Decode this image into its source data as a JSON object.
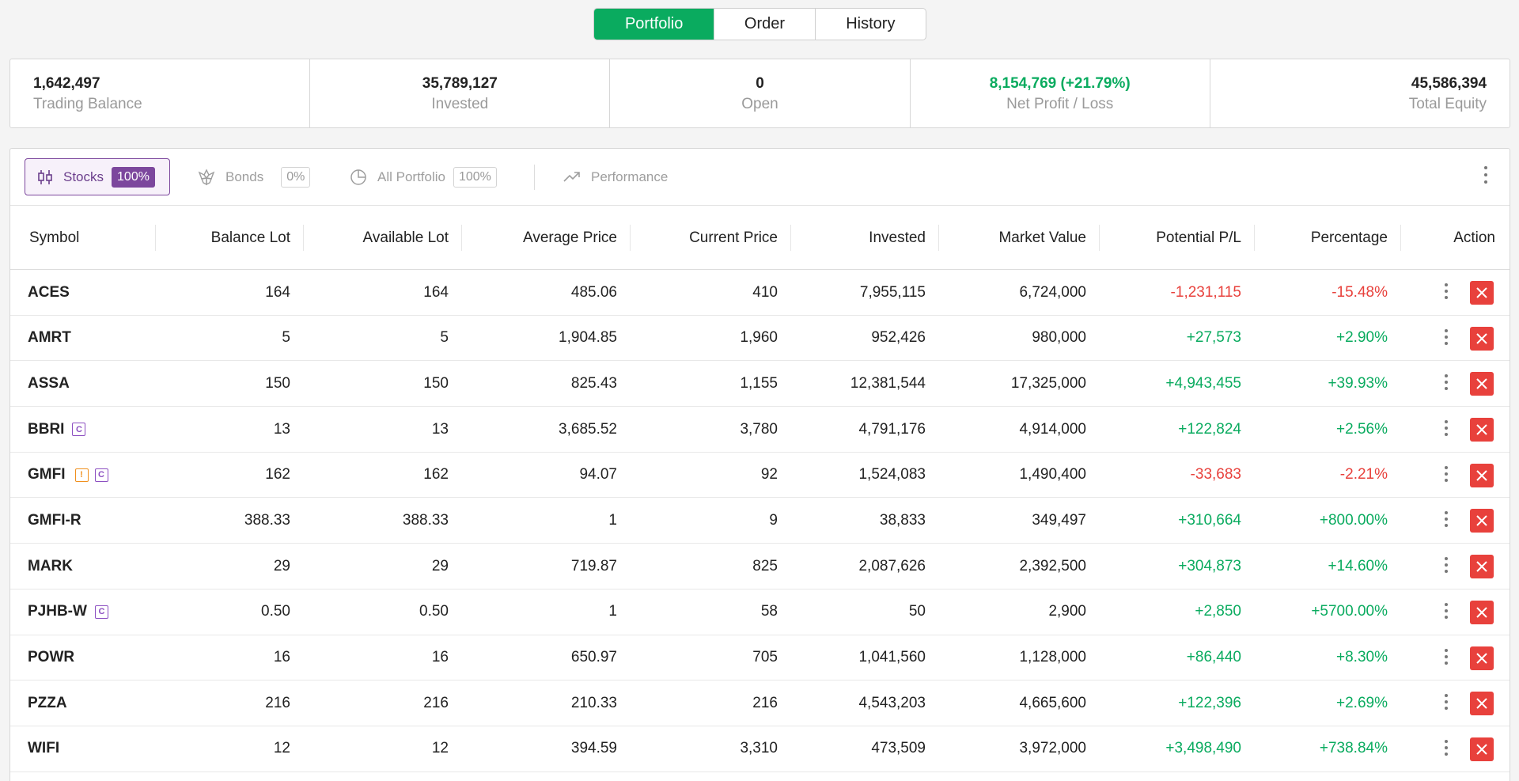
{
  "tabs": [
    {
      "label": "Portfolio",
      "active": true
    },
    {
      "label": "Order",
      "active": false
    },
    {
      "label": "History",
      "active": false
    }
  ],
  "summary": [
    {
      "value": "1,642,497",
      "label": "Trading Balance",
      "align": "left"
    },
    {
      "value": "35,789,127",
      "label": "Invested",
      "align": "center"
    },
    {
      "value": "0",
      "label": "Open",
      "align": "center"
    },
    {
      "value": "8,154,769 (+21.79%)",
      "label": "Net Profit / Loss",
      "align": "center",
      "positive": true
    },
    {
      "value": "45,586,394",
      "label": "Total Equity",
      "align": "right"
    }
  ],
  "toolbar": {
    "stocks": {
      "label": "Stocks",
      "pct": "100%"
    },
    "bonds": {
      "label": "Bonds",
      "pct": "0%"
    },
    "all": {
      "label": "All Portfolio",
      "pct": "100%"
    },
    "performance": {
      "label": "Performance"
    }
  },
  "columns": [
    "Symbol",
    "Balance Lot",
    "Available Lot",
    "Average Price",
    "Current Price",
    "Invested",
    "Market Value",
    "Potential P/L",
    "Percentage",
    "Action"
  ],
  "rows": [
    {
      "symbol": "ACES",
      "badges": [],
      "balance_lot": "164",
      "available_lot": "164",
      "avg_price": "485.06",
      "current_price": "410",
      "invested": "7,955,115",
      "market_value": "6,724,000",
      "pl": "-1,231,115",
      "pct": "-15.48%",
      "positive": false
    },
    {
      "symbol": "AMRT",
      "badges": [],
      "balance_lot": "5",
      "available_lot": "5",
      "avg_price": "1,904.85",
      "current_price": "1,960",
      "invested": "952,426",
      "market_value": "980,000",
      "pl": "+27,573",
      "pct": "+2.90%",
      "positive": true
    },
    {
      "symbol": "ASSA",
      "badges": [],
      "balance_lot": "150",
      "available_lot": "150",
      "avg_price": "825.43",
      "current_price": "1,155",
      "invested": "12,381,544",
      "market_value": "17,325,000",
      "pl": "+4,943,455",
      "pct": "+39.93%",
      "positive": true
    },
    {
      "symbol": "BBRI",
      "badges": [
        "C"
      ],
      "balance_lot": "13",
      "available_lot": "13",
      "avg_price": "3,685.52",
      "current_price": "3,780",
      "invested": "4,791,176",
      "market_value": "4,914,000",
      "pl": "+122,824",
      "pct": "+2.56%",
      "positive": true
    },
    {
      "symbol": "GMFI",
      "badges": [
        "!",
        "C"
      ],
      "balance_lot": "162",
      "available_lot": "162",
      "avg_price": "94.07",
      "current_price": "92",
      "invested": "1,524,083",
      "market_value": "1,490,400",
      "pl": "-33,683",
      "pct": "-2.21%",
      "positive": false
    },
    {
      "symbol": "GMFI-R",
      "badges": [],
      "balance_lot": "388.33",
      "available_lot": "388.33",
      "avg_price": "1",
      "current_price": "9",
      "invested": "38,833",
      "market_value": "349,497",
      "pl": "+310,664",
      "pct": "+800.00%",
      "positive": true
    },
    {
      "symbol": "MARK",
      "badges": [],
      "balance_lot": "29",
      "available_lot": "29",
      "avg_price": "719.87",
      "current_price": "825",
      "invested": "2,087,626",
      "market_value": "2,392,500",
      "pl": "+304,873",
      "pct": "+14.60%",
      "positive": true
    },
    {
      "symbol": "PJHB-W",
      "badges": [
        "C"
      ],
      "balance_lot": "0.50",
      "available_lot": "0.50",
      "avg_price": "1",
      "current_price": "58",
      "invested": "50",
      "market_value": "2,900",
      "pl": "+2,850",
      "pct": "+5700.00%",
      "positive": true
    },
    {
      "symbol": "POWR",
      "badges": [],
      "balance_lot": "16",
      "available_lot": "16",
      "avg_price": "650.97",
      "current_price": "705",
      "invested": "1,041,560",
      "market_value": "1,128,000",
      "pl": "+86,440",
      "pct": "+8.30%",
      "positive": true
    },
    {
      "symbol": "PZZA",
      "badges": [],
      "balance_lot": "216",
      "available_lot": "216",
      "avg_price": "210.33",
      "current_price": "216",
      "invested": "4,543,203",
      "market_value": "4,665,600",
      "pl": "+122,396",
      "pct": "+2.69%",
      "positive": true
    },
    {
      "symbol": "WIFI",
      "badges": [],
      "balance_lot": "12",
      "available_lot": "12",
      "avg_price": "394.59",
      "current_price": "3,310",
      "invested": "473,509",
      "market_value": "3,972,000",
      "pl": "+3,498,490",
      "pct": "+738.84%",
      "positive": true
    }
  ],
  "colors": {
    "green": "#0aab5f",
    "red": "#e8413c",
    "purple": "#7c479d",
    "orange": "#f0901e"
  },
  "icons": {
    "stocks": "candlestick-icon",
    "bonds": "bonds-icon",
    "all": "pie-chart-icon",
    "performance": "trend-up-icon",
    "close": "close-icon",
    "more": "more-vertical-icon"
  }
}
